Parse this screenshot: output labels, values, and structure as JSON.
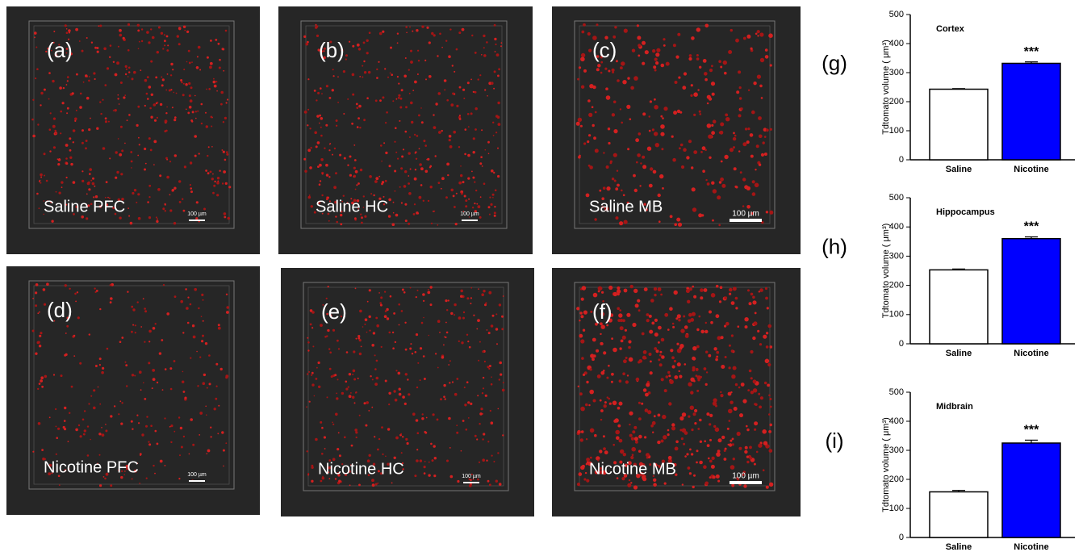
{
  "panels": [
    {
      "label": "(a)",
      "name": "Saline PFC",
      "scale": "100 µm"
    },
    {
      "label": "(b)",
      "name": "Saline HC",
      "scale": "100 µm"
    },
    {
      "label": "(c)",
      "name": "Saline MB",
      "scale": "100 µm"
    },
    {
      "label": "(d)",
      "name": "Nicotine PFC",
      "scale": "100 µm"
    },
    {
      "label": "(e)",
      "name": "Nicotine HC",
      "scale": "100 µm"
    },
    {
      "label": "(f)",
      "name": "Nicotine MB",
      "scale": "100 µm"
    }
  ],
  "chart_data": [
    {
      "type": "bar",
      "panel": "(g)",
      "title": "Cortex",
      "y_label": "Tdtomato volume ( μm³)",
      "categories": [
        "Saline",
        "Nicotine"
      ],
      "values": [
        243,
        332
      ],
      "errors": [
        2,
        5
      ],
      "colors": [
        "#ffffff",
        "#0000ff"
      ],
      "annotation": "***",
      "ylim": [
        0,
        500
      ],
      "yticks": [
        0,
        100,
        200,
        300,
        400,
        500
      ]
    },
    {
      "type": "bar",
      "panel": "(h)",
      "title": "Hippocampus",
      "y_label": "Tdtomato volume ( μm³)",
      "categories": [
        "Saline",
        "Nicotine"
      ],
      "values": [
        253,
        360
      ],
      "errors": [
        3,
        6
      ],
      "colors": [
        "#ffffff",
        "#0000ff"
      ],
      "annotation": "***",
      "ylim": [
        0,
        500
      ],
      "yticks": [
        0,
        100,
        200,
        300,
        400,
        500
      ]
    },
    {
      "type": "bar",
      "panel": "(i)",
      "title": "Midbrain",
      "y_label": "Tdtomato volume ( μm³)",
      "categories": [
        "Saline",
        "Nicotine"
      ],
      "values": [
        157,
        325
      ],
      "errors": [
        5,
        10
      ],
      "colors": [
        "#ffffff",
        "#0000ff"
      ],
      "annotation": "***",
      "ylim": [
        0,
        500
      ],
      "yticks": [
        0,
        100,
        200,
        300,
        400,
        500
      ]
    }
  ]
}
